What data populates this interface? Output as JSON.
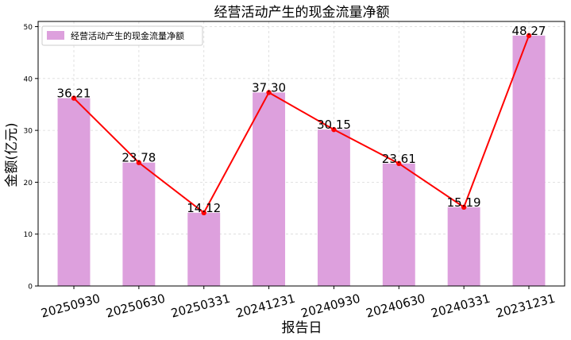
{
  "chart_data": {
    "type": "bar",
    "title": "经营活动产生的现金流量净额",
    "xlabel": "报告日",
    "ylabel": "金额(亿元)",
    "categories": [
      "20250930",
      "20250630",
      "20250331",
      "20241231",
      "20240930",
      "20240630",
      "20240331",
      "20231231"
    ],
    "series": [
      {
        "name": "经营活动产生的现金流量净额",
        "values": [
          36.21,
          23.78,
          14.12,
          37.3,
          30.15,
          23.61,
          15.19,
          48.27
        ]
      }
    ],
    "data_labels": [
      "36.21",
      "23.78",
      "14.12",
      "37.30",
      "30.15",
      "23.61",
      "15.19",
      "48.27"
    ],
    "ylim": [
      0,
      51
    ],
    "yticks": [
      "0",
      "10",
      "20",
      "30",
      "40",
      "50"
    ],
    "grid": true,
    "legend_position": "top-left",
    "colors": {
      "bar": "#dda0dd",
      "line": "#ff0000",
      "grid": "#d9d9d9",
      "axis": "#000000"
    }
  }
}
